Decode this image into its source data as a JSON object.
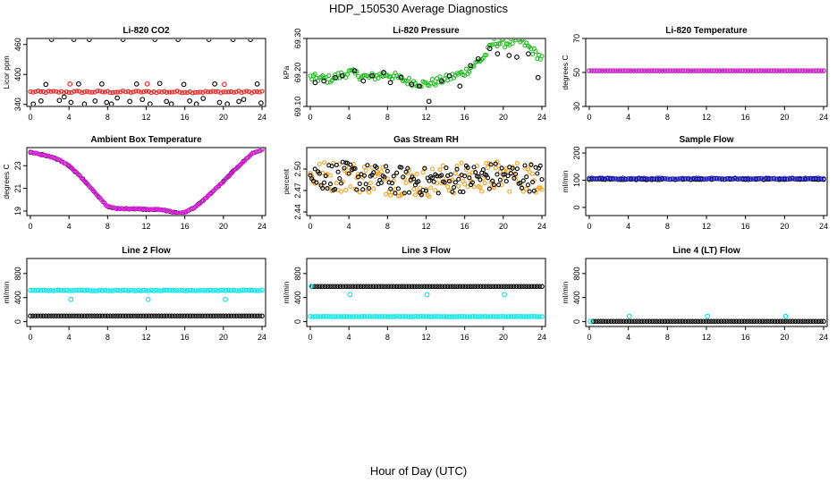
{
  "figure": {
    "title": "HDP_150530  Average Diagnostics",
    "xlabel": "Hour of Day (UTC)"
  },
  "chart_data": [
    {
      "type": "scatter",
      "title": "Li-820 CO2",
      "ylabel": "Licor ppm",
      "xlim": [
        0,
        24
      ],
      "ylim": [
        336,
        472
      ],
      "xticks": [
        "0",
        "4",
        "8",
        "12",
        "16",
        "20",
        "24"
      ],
      "yticks": [
        "340",
        "400",
        "460"
      ],
      "series": [
        {
          "color": "#000000",
          "pattern": "scatter",
          "x": [
            0.3,
            1.1,
            1.6,
            2.2,
            3.0,
            3.5,
            4.2,
            4.5,
            5.0,
            5.6,
            6.1,
            6.7,
            7.4,
            7.9,
            8.4,
            9.0,
            9.6,
            10.3,
            11.0,
            11.6,
            12.4,
            12.9,
            13.4,
            14.1,
            14.6,
            15.3,
            15.9,
            16.5,
            17.2,
            17.9,
            18.5,
            19.1,
            19.6,
            20.4,
            21.0,
            21.6,
            22.1,
            22.8,
            23.5,
            23.9
          ],
          "y": [
            341,
            347,
            380,
            470,
            348,
            355,
            344,
            470,
            381,
            341,
            470,
            347,
            381,
            344,
            341,
            353,
            470,
            346,
            381,
            350,
            341,
            470,
            382,
            346,
            341,
            470,
            380,
            347,
            341,
            352,
            470,
            381,
            344,
            341,
            470,
            346,
            350,
            470,
            381,
            343
          ]
        },
        {
          "color": "#e8221f",
          "pattern": "band",
          "x0": 0.0,
          "x1": 24.0,
          "y": 365,
          "spread": 2
        },
        {
          "color": "#e8221f",
          "pattern": "scatter",
          "x": [
            4.1,
            12.1,
            20.1
          ],
          "y": [
            381,
            381,
            380
          ]
        }
      ]
    },
    {
      "type": "scatter",
      "title": "Li-820 Pressure",
      "ylabel": "kPa",
      "xlim": [
        0,
        24
      ],
      "ylim": [
        69.1,
        69.3
      ],
      "xticks": [
        "0",
        "4",
        "8",
        "12",
        "16",
        "20",
        "24"
      ],
      "yticks": [
        "69.10",
        "69.20",
        "69.30"
      ],
      "series": [
        {
          "color": "#22bb22",
          "pattern": "curve",
          "knots_x": [
            0,
            2,
            4,
            6,
            8,
            10,
            12,
            14,
            16,
            18,
            19,
            20,
            21,
            22,
            23,
            24
          ],
          "knots_y": [
            69.185,
            69.18,
            69.2,
            69.185,
            69.195,
            69.175,
            69.165,
            69.18,
            69.2,
            69.245,
            69.29,
            69.285,
            69.29,
            69.29,
            69.265,
            69.24
          ],
          "spread": 0.012
        },
        {
          "color": "#000000",
          "pattern": "scatter",
          "x": [
            0.5,
            1.4,
            2.6,
            3.3,
            4.6,
            5.5,
            6.4,
            7.6,
            8.3,
            9.4,
            10.5,
            11.3,
            12.3,
            13.6,
            14.4,
            15.5,
            16.6,
            17.4,
            18.6,
            19.4,
            20.6,
            21.4,
            22.6,
            23.6
          ],
          "y": [
            69.17,
            69.175,
            69.185,
            69.19,
            69.205,
            69.175,
            69.19,
            69.2,
            69.17,
            69.185,
            69.165,
            69.16,
            69.115,
            69.175,
            69.19,
            69.16,
            69.22,
            69.24,
            69.27,
            69.255,
            69.25,
            69.245,
            69.255,
            69.185
          ]
        }
      ]
    },
    {
      "type": "scatter",
      "title": "Li-820 Temperature",
      "ylabel": "degrees C",
      "xlim": [
        0,
        24
      ],
      "ylim": [
        30,
        70
      ],
      "xticks": [
        "0",
        "4",
        "8",
        "12",
        "16",
        "20",
        "24"
      ],
      "yticks": [
        "30",
        "50",
        "70"
      ],
      "series": [
        {
          "color": "#000000",
          "pattern": "flat",
          "x0": 0.0,
          "x1": 24.0,
          "y": 51.0,
          "spread": 0
        },
        {
          "color": "#dd22dd",
          "pattern": "flat",
          "x0": 0.0,
          "x1": 24.0,
          "y": 51.0,
          "spread": 0
        }
      ]
    },
    {
      "type": "scatter",
      "title": "Ambient Box Temperature",
      "ylabel": "degrees C",
      "xlim": [
        0,
        24
      ],
      "ylim": [
        18.6,
        24.6
      ],
      "xticks": [
        "0",
        "4",
        "8",
        "12",
        "16",
        "20",
        "24"
      ],
      "yticks": [
        "19",
        "21",
        "23"
      ],
      "series": [
        {
          "color": "#000000",
          "pattern": "curve",
          "knots_x": [
            0,
            1,
            2,
            3,
            4,
            5,
            6,
            7,
            8,
            9,
            10,
            11,
            12,
            13,
            14,
            15,
            15.5,
            16,
            17,
            18,
            19,
            20,
            21,
            22,
            23,
            24
          ],
          "knots_y": [
            24.2,
            24.0,
            23.8,
            23.5,
            23.0,
            22.2,
            21.3,
            20.3,
            19.4,
            19.2,
            19.2,
            19.2,
            19.15,
            19.15,
            19.05,
            18.85,
            18.8,
            18.9,
            19.3,
            20.0,
            20.8,
            21.6,
            22.5,
            23.3,
            24.1,
            24.4
          ],
          "spread": 0.04
        },
        {
          "color": "#dd22dd",
          "pattern": "curve",
          "knots_x": [
            0,
            1,
            2,
            3,
            4,
            5,
            6,
            7,
            8,
            9,
            10,
            11,
            12,
            13,
            14,
            15,
            15.5,
            16,
            17,
            18,
            19,
            20,
            21,
            22,
            23,
            24
          ],
          "knots_y": [
            24.2,
            24.0,
            23.8,
            23.5,
            23.0,
            22.2,
            21.3,
            20.3,
            19.4,
            19.2,
            19.2,
            19.2,
            19.15,
            19.15,
            19.05,
            18.85,
            18.8,
            18.9,
            19.3,
            20.0,
            20.8,
            21.6,
            22.5,
            23.3,
            24.1,
            24.4
          ],
          "spread": 0.04
        }
      ]
    },
    {
      "type": "scatter",
      "title": "Gas Stream RH",
      "ylabel": "percent",
      "xlim": [
        0,
        24
      ],
      "ylim": [
        2.435,
        2.53
      ],
      "xticks": [
        "0",
        "4",
        "8",
        "12",
        "16",
        "20",
        "24"
      ],
      "yticks": [
        "2.44",
        "2.47",
        "2.50"
      ],
      "series": [
        {
          "color": "#f0a020",
          "pattern": "curve",
          "knots_x": [
            0,
            4,
            8,
            12,
            16,
            20,
            24
          ],
          "knots_y": [
            2.49,
            2.49,
            2.485,
            2.482,
            2.488,
            2.49,
            2.488
          ],
          "spread": 0.022
        },
        {
          "color": "#000000",
          "pattern": "curve",
          "knots_x": [
            0,
            4,
            8,
            12,
            16,
            20,
            24
          ],
          "knots_y": [
            2.49,
            2.49,
            2.485,
            2.482,
            2.488,
            2.49,
            2.488
          ],
          "spread": 0.02
        }
      ]
    },
    {
      "type": "scatter",
      "title": "Sample Flow",
      "ylabel": "ml/min",
      "xlim": [
        0,
        24
      ],
      "ylim": [
        -30,
        220
      ],
      "xticks": [
        "0",
        "4",
        "8",
        "12",
        "16",
        "20",
        "24"
      ],
      "yticks": [
        "0",
        "100",
        "200"
      ],
      "series": [
        {
          "color": "#000000",
          "pattern": "flat",
          "x0": 0.0,
          "x1": 24.0,
          "y": 104,
          "spread": 2
        },
        {
          "color": "#1c1ccc",
          "pattern": "flat",
          "x0": 0.0,
          "x1": 24.0,
          "y": 106,
          "spread": 2
        }
      ]
    },
    {
      "type": "scatter",
      "title": "Line 2 Flow",
      "ylabel": "ml/min",
      "xlim": [
        0,
        24
      ],
      "ylim": [
        -80,
        1050
      ],
      "xticks": [
        "0",
        "4",
        "8",
        "12",
        "16",
        "20",
        "24"
      ],
      "yticks": [
        "0",
        "400",
        "800"
      ],
      "series": [
        {
          "color": "#00e5e5",
          "pattern": "flat",
          "x0": 0.0,
          "x1": 24.0,
          "y": 520,
          "spread": 6
        },
        {
          "color": "#000000",
          "pattern": "flat",
          "x0": 0.0,
          "x1": 24.0,
          "y": 95,
          "spread": 0
        },
        {
          "color": "#00e5e5",
          "pattern": "scatter",
          "x": [
            4.2,
            12.2,
            20.2
          ],
          "y": [
            370,
            370,
            370
          ]
        }
      ]
    },
    {
      "type": "scatter",
      "title": "Line 3 Flow",
      "ylabel": "ml/min",
      "xlim": [
        0,
        24
      ],
      "ylim": [
        -80,
        1050
      ],
      "xticks": [
        "0",
        "4",
        "8",
        "12",
        "16",
        "20",
        "24"
      ],
      "yticks": [
        "0",
        "400",
        "800"
      ],
      "series": [
        {
          "color": "#000000",
          "pattern": "flat",
          "x0": 0.2,
          "x1": 24.0,
          "y": 585,
          "spread": 0
        },
        {
          "color": "#00e5e5",
          "pattern": "flat",
          "x0": 0.0,
          "x1": 24.0,
          "y": 85,
          "spread": 2
        },
        {
          "color": "#00e5e5",
          "pattern": "scatter",
          "x": [
            0.1,
            4.1,
            12.1,
            20.1
          ],
          "y": [
            590,
            450,
            450,
            450
          ]
        }
      ]
    },
    {
      "type": "scatter",
      "title": "Line 4 (LT) Flow",
      "ylabel": "ml/min",
      "xlim": [
        0,
        24
      ],
      "ylim": [
        -80,
        1050
      ],
      "xticks": [
        "0",
        "4",
        "8",
        "12",
        "16",
        "20",
        "24"
      ],
      "yticks": [
        "0",
        "400",
        "800"
      ],
      "series": [
        {
          "color": "#000000",
          "pattern": "flat",
          "x0": 0.4,
          "x1": 24.0,
          "y": 5,
          "spread": 0
        },
        {
          "color": "#00e5e5",
          "pattern": "scatter",
          "x": [
            0.1,
            4.1,
            12.1,
            20.1
          ],
          "y": [
            5,
            90,
            90,
            90
          ]
        }
      ]
    }
  ]
}
